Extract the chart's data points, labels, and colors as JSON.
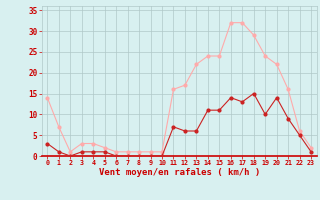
{
  "x": [
    0,
    1,
    2,
    3,
    4,
    5,
    6,
    7,
    8,
    9,
    10,
    11,
    12,
    13,
    14,
    15,
    16,
    17,
    18,
    19,
    20,
    21,
    22,
    23
  ],
  "rafales": [
    14,
    7,
    1,
    3,
    3,
    2,
    1,
    1,
    1,
    1,
    1,
    16,
    17,
    22,
    24,
    24,
    32,
    32,
    29,
    24,
    22,
    16,
    6,
    2
  ],
  "moyen": [
    3,
    1,
    0,
    1,
    1,
    1,
    0,
    0,
    0,
    0,
    0,
    7,
    6,
    6,
    11,
    11,
    14,
    13,
    15,
    10,
    14,
    9,
    5,
    1
  ],
  "bg_color": "#d8f0f0",
  "grid_color": "#b0c8c8",
  "line_rafales_color": "#ffaaaa",
  "line_moyen_color": "#cc2222",
  "marker_color_rafales": "#ffaaaa",
  "marker_color_moyen": "#cc2222",
  "xlabel": "Vent moyen/en rafales ( km/h )",
  "xlabel_color": "#cc0000",
  "tick_color": "#cc0000",
  "ylim": [
    0,
    36
  ],
  "yticks": [
    0,
    5,
    10,
    15,
    20,
    25,
    30,
    35
  ],
  "xlim": [
    -0.5,
    23.5
  ]
}
